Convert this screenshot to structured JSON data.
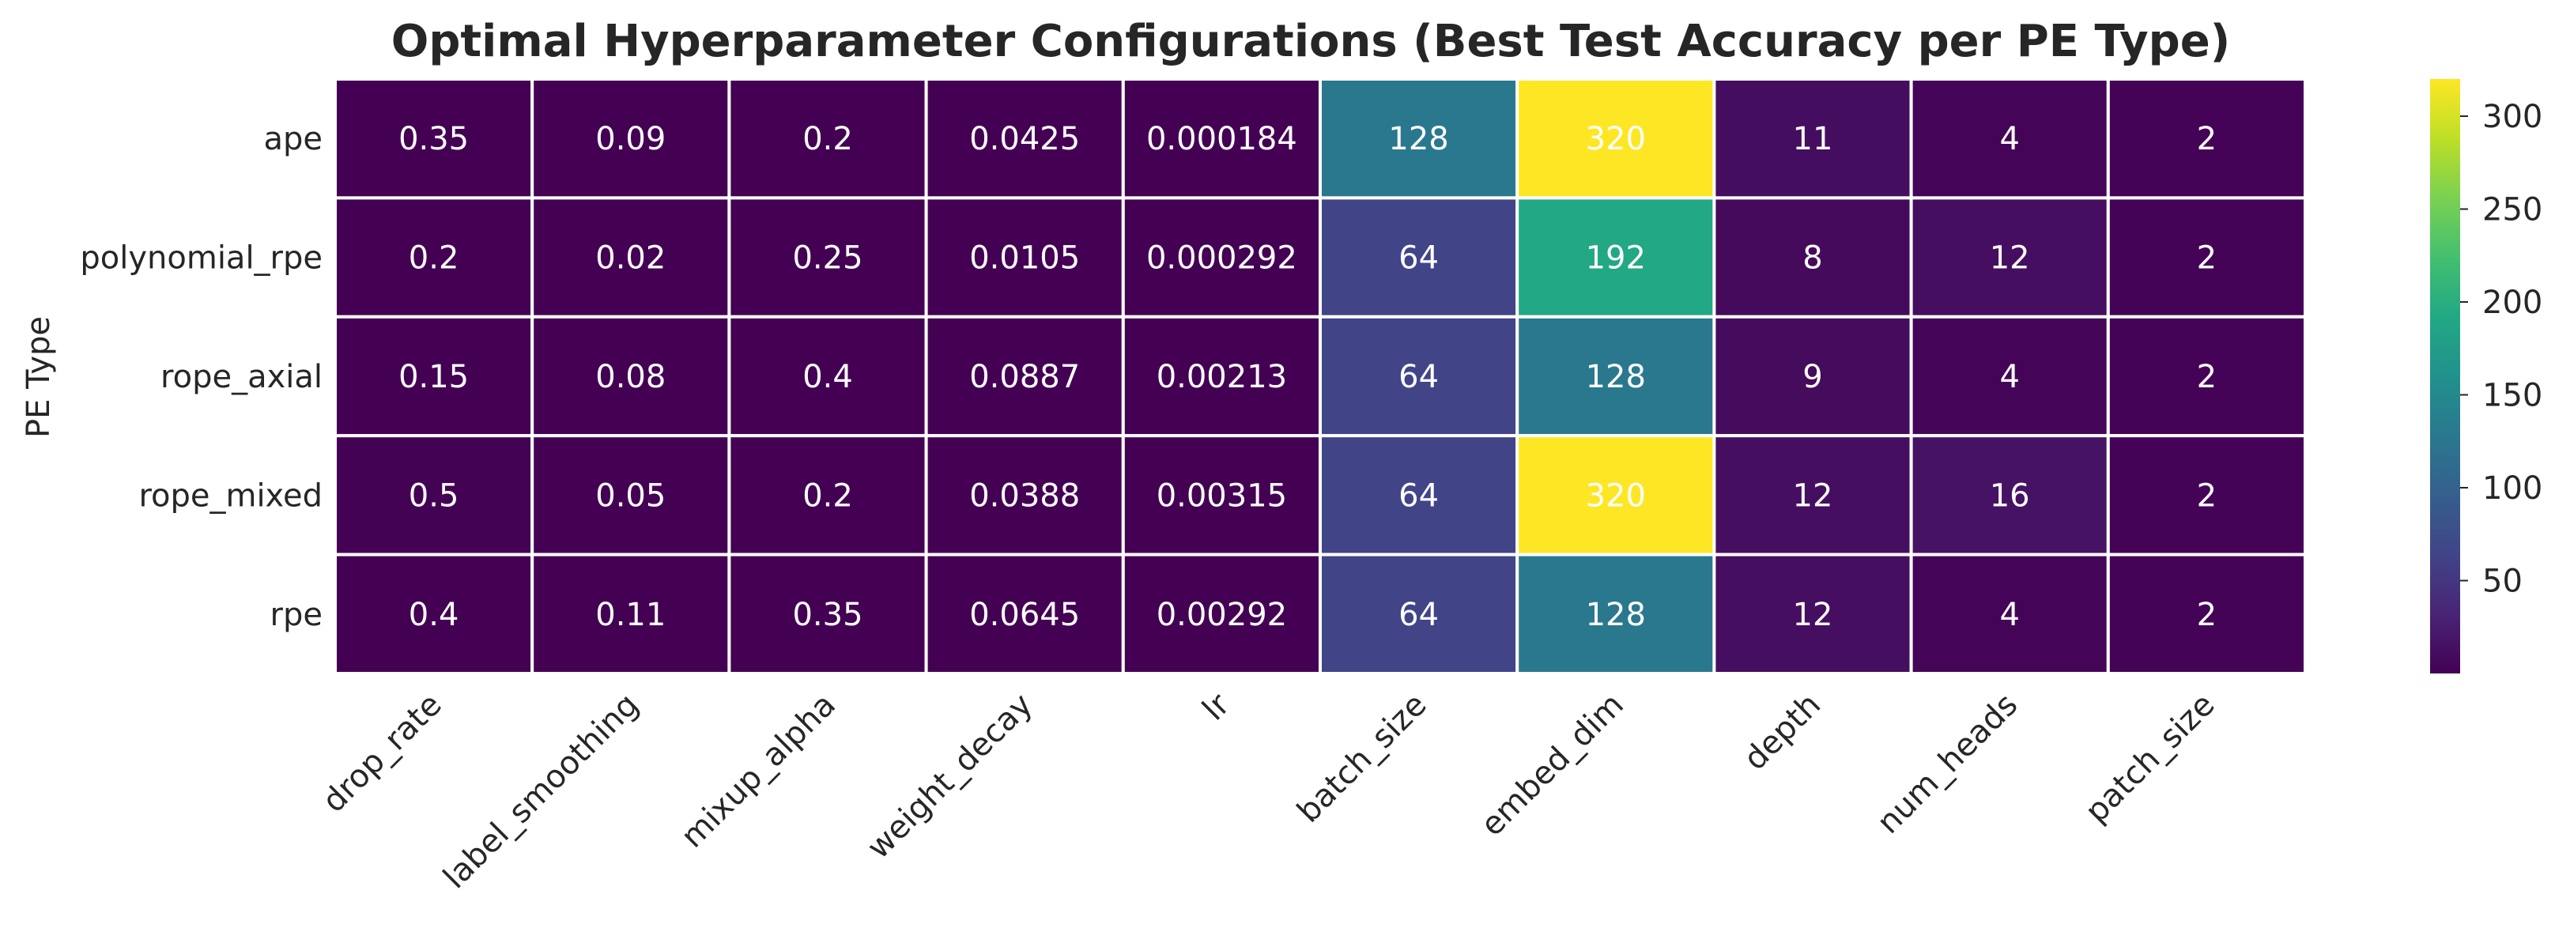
{
  "chart_data": {
    "type": "heatmap",
    "title": "Optimal Hyperparameter Configurations (Best Test Accuracy per PE Type)",
    "ylabel": "PE Type",
    "xlabel": "",
    "rows": [
      "ape",
      "polynomial_rpe",
      "rope_axial",
      "rope_mixed",
      "rpe"
    ],
    "columns": [
      "drop_rate",
      "label_smoothing",
      "mixup_alpha",
      "weight_decay",
      "lr",
      "batch_size",
      "embed_dim",
      "depth",
      "num_heads",
      "patch_size"
    ],
    "values": [
      [
        0.35,
        0.09,
        0.2,
        0.0425,
        0.000184,
        128,
        320,
        11,
        4,
        2
      ],
      [
        0.2,
        0.02,
        0.25,
        0.0105,
        0.000292,
        64,
        192,
        8,
        12,
        2
      ],
      [
        0.15,
        0.08,
        0.4,
        0.0887,
        0.00213,
        64,
        128,
        9,
        4,
        2
      ],
      [
        0.5,
        0.05,
        0.2,
        0.0388,
        0.00315,
        64,
        320,
        12,
        16,
        2
      ],
      [
        0.4,
        0.11,
        0.35,
        0.0645,
        0.00292,
        64,
        128,
        12,
        4,
        2
      ]
    ],
    "annotations": [
      [
        "0.35",
        "0.09",
        "0.2",
        "0.0425",
        "0.000184",
        "128",
        "320",
        "11",
        "4",
        "2"
      ],
      [
        "0.2",
        "0.02",
        "0.25",
        "0.0105",
        "0.000292",
        "64",
        "192",
        "8",
        "12",
        "2"
      ],
      [
        "0.15",
        "0.08",
        "0.4",
        "0.0887",
        "0.00213",
        "64",
        "128",
        "9",
        "4",
        "2"
      ],
      [
        "0.5",
        "0.05",
        "0.2",
        "0.0388",
        "0.00315",
        "64",
        "320",
        "12",
        "16",
        "2"
      ],
      [
        "0.4",
        "0.11",
        "0.35",
        "0.0645",
        "0.00292",
        "64",
        "128",
        "12",
        "4",
        "2"
      ]
    ],
    "colormap": "viridis",
    "color_range": [
      0.000184,
      320
    ],
    "colorbar_ticks": [
      50,
      100,
      150,
      200,
      250,
      300
    ],
    "annotation_color": "#ffffff",
    "grid_line_color": "#ffffff"
  }
}
